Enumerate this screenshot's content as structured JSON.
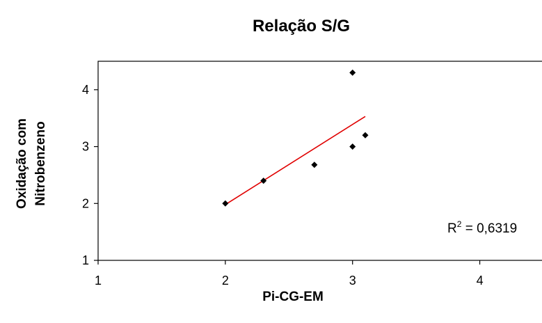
{
  "chart_data": {
    "type": "scatter",
    "title": "Relação S/G",
    "xlabel": "Pi-CG-EM",
    "ylabel": [
      "Oxidação com",
      "Nitrobenzeno"
    ],
    "xlim": [
      1,
      4.5
    ],
    "ylim": [
      1,
      4.5
    ],
    "xticks": [
      1,
      2,
      3,
      4
    ],
    "yticks": [
      1,
      2,
      3,
      4
    ],
    "series": [
      {
        "marker_color": "#000000",
        "points": [
          {
            "x": 2.0,
            "y": 2.0
          },
          {
            "x": 2.3,
            "y": 2.4
          },
          {
            "x": 2.7,
            "y": 2.68
          },
          {
            "x": 3.0,
            "y": 3.0
          },
          {
            "x": 3.0,
            "y": 4.3
          },
          {
            "x": 3.1,
            "y": 3.2
          }
        ]
      }
    ],
    "trendline": {
      "color": "#e00000",
      "x_start": 2.0,
      "y_start": 1.98,
      "x_end": 3.1,
      "y_end": 3.53
    },
    "annotation": {
      "prefix": "R",
      "sup": "2",
      "suffix": " = 0,6319"
    },
    "grid": false,
    "legend": "none"
  }
}
